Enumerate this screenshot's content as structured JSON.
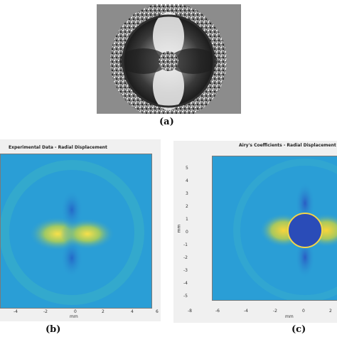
{
  "panels": {
    "a": {
      "label": "(a)"
    },
    "b": {
      "label": "(b)",
      "title": "Experimental Data - Radial Displacement",
      "x_ticks": [
        "-4",
        "-2",
        "0",
        "2",
        "4",
        "6"
      ],
      "x_unit": "mm"
    },
    "c": {
      "label": "(c)",
      "title": "Airy's Coefficients - Radial Displacement",
      "x_ticks": [
        "-8",
        "-6",
        "-4",
        "-2",
        "0",
        "2"
      ],
      "y_ticks": [
        "5",
        "4",
        "3",
        "2",
        "1",
        "0",
        "-1",
        "-2",
        "-3",
        "-4",
        "-5"
      ],
      "unit": "mm"
    }
  },
  "colors": {
    "field_blue": "#2a9ed6",
    "field_cyan": "#3cb4c8",
    "field_yellow": "#f5d23c",
    "hole": "#2a4cb8",
    "phase_gray": "#6f6f6f"
  }
}
